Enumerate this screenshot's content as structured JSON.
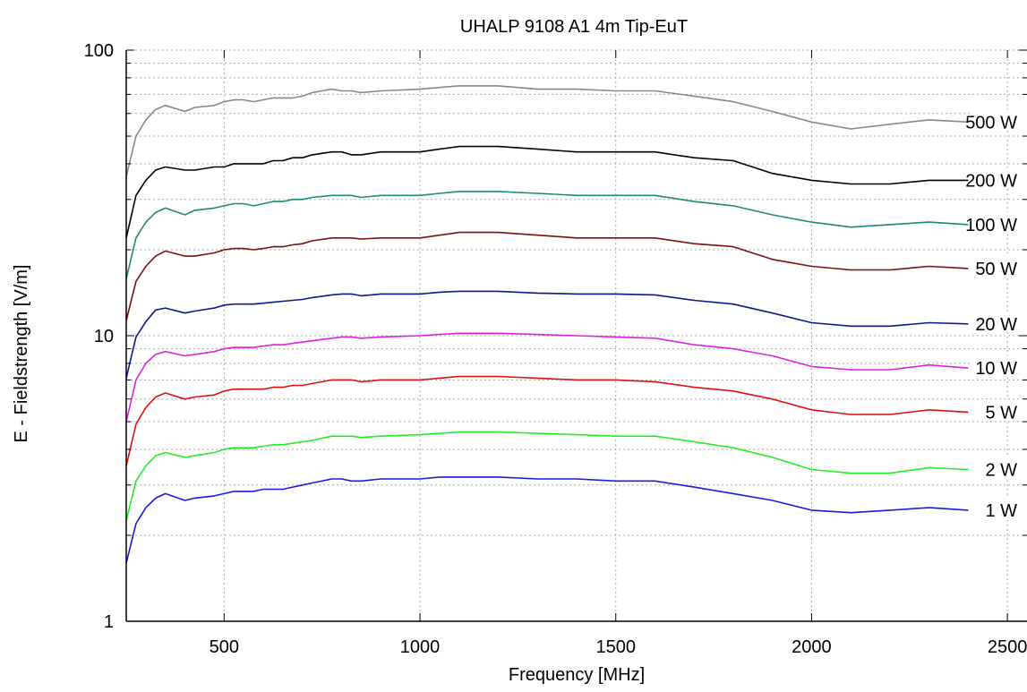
{
  "chart_data": {
    "type": "line",
    "title": "UHALP 9108 A1  4m Tip-EuT",
    "xlabel": "Frequency [MHz]",
    "ylabel": "E - Fieldstrength [V/m]",
    "xlim": [
      250,
      2550
    ],
    "ylim": [
      1,
      100
    ],
    "yscale": "log",
    "grid": true,
    "x_ticks": [
      500,
      1000,
      1500,
      2000,
      2500
    ],
    "y_ticks": [
      1,
      10,
      100
    ],
    "x_tick_labels": [
      "500",
      "1000",
      "1500",
      "2000",
      "2500"
    ],
    "y_tick_labels": [
      "1",
      "10",
      "100"
    ],
    "x": [
      250,
      275,
      300,
      325,
      350,
      400,
      425,
      475,
      500,
      525,
      550,
      575,
      600,
      625,
      650,
      675,
      700,
      725,
      775,
      800,
      825,
      850,
      900,
      1000,
      1050,
      1100,
      1200,
      1300,
      1400,
      1500,
      1600,
      1700,
      1800,
      1900,
      2000,
      2100,
      2200,
      2300,
      2400
    ],
    "series": [
      {
        "name": "500 W",
        "color": "#888888",
        "values": [
          36,
          50,
          57,
          62,
          64,
          61,
          63,
          64,
          66,
          67,
          67,
          66,
          67,
          68,
          68,
          68,
          69,
          71,
          73,
          72,
          72,
          71,
          72,
          73,
          74,
          75,
          75,
          73,
          73,
          72,
          72,
          69,
          66,
          61,
          56,
          53,
          55,
          57,
          56
        ]
      },
      {
        "name": "200 W",
        "color": "#000000",
        "values": [
          22,
          31,
          35,
          38,
          39,
          38,
          38,
          39,
          39,
          40,
          40,
          40,
          40,
          41,
          41,
          42,
          42,
          43,
          44,
          44,
          43,
          43,
          44,
          44,
          45,
          46,
          46,
          45,
          44,
          44,
          44,
          42,
          41,
          37,
          35,
          34,
          34,
          35,
          35
        ]
      },
      {
        "name": "100 W",
        "color": "#1b8a7a",
        "values": [
          15.8,
          22,
          25,
          27,
          28,
          26.5,
          27.5,
          28,
          28.5,
          29,
          29,
          28.5,
          29,
          29.5,
          29.5,
          30,
          30,
          30.5,
          31,
          31,
          31,
          30.5,
          31,
          31,
          31.5,
          32,
          32,
          31.5,
          31,
          31,
          31,
          29.5,
          28.5,
          26.5,
          25,
          24,
          24.5,
          25,
          24.5
        ]
      },
      {
        "name": "50 W",
        "color": "#7a1010",
        "values": [
          11.3,
          15.5,
          17.5,
          19,
          19.8,
          19,
          19,
          19.5,
          20,
          20.2,
          20.2,
          20,
          20.2,
          20.5,
          20.5,
          20.8,
          21,
          21.5,
          22,
          22,
          22,
          21.8,
          22,
          22,
          22.5,
          23,
          23,
          22.5,
          22,
          22,
          22,
          21,
          20.5,
          18.5,
          17.5,
          17,
          17,
          17.5,
          17.2
        ]
      },
      {
        "name": "20 W",
        "color": "#0a1a8a",
        "values": [
          7.1,
          9.9,
          11.2,
          12.3,
          12.5,
          12,
          12.2,
          12.5,
          12.8,
          12.9,
          12.9,
          12.9,
          13,
          13.1,
          13.2,
          13.3,
          13.4,
          13.6,
          13.9,
          14,
          14,
          13.8,
          14,
          14,
          14.2,
          14.3,
          14.3,
          14.1,
          14,
          14,
          13.9,
          13.3,
          12.9,
          12,
          11.1,
          10.8,
          10.8,
          11.1,
          11
        ]
      },
      {
        "name": "10 W",
        "color": "#e020e0",
        "values": [
          5,
          7,
          8,
          8.6,
          8.8,
          8.5,
          8.6,
          8.8,
          9,
          9.1,
          9.1,
          9.1,
          9.2,
          9.3,
          9.3,
          9.4,
          9.5,
          9.6,
          9.8,
          9.9,
          9.9,
          9.8,
          9.9,
          10,
          10.1,
          10.2,
          10.2,
          10.1,
          10,
          9.9,
          9.8,
          9.3,
          9,
          8.5,
          7.8,
          7.6,
          7.6,
          7.9,
          7.7
        ]
      },
      {
        "name": "5 W",
        "color": "#e01010",
        "values": [
          3.5,
          4.9,
          5.6,
          6.1,
          6.3,
          6.0,
          6.1,
          6.2,
          6.4,
          6.5,
          6.5,
          6.5,
          6.5,
          6.6,
          6.6,
          6.7,
          6.7,
          6.8,
          7,
          7,
          7,
          6.9,
          7,
          7,
          7.1,
          7.2,
          7.2,
          7.1,
          7,
          7,
          6.9,
          6.6,
          6.4,
          6,
          5.5,
          5.3,
          5.3,
          5.5,
          5.4
        ]
      },
      {
        "name": "2 W",
        "color": "#22ee22",
        "values": [
          2.25,
          3.1,
          3.5,
          3.8,
          3.9,
          3.75,
          3.8,
          3.9,
          4,
          4.05,
          4.05,
          4.05,
          4.1,
          4.15,
          4.15,
          4.2,
          4.25,
          4.3,
          4.45,
          4.45,
          4.45,
          4.4,
          4.45,
          4.5,
          4.55,
          4.6,
          4.6,
          4.55,
          4.5,
          4.45,
          4.45,
          4.25,
          4.05,
          3.75,
          3.4,
          3.3,
          3.3,
          3.45,
          3.4
        ]
      },
      {
        "name": "1 W",
        "color": "#1a1ae0",
        "values": [
          1.6,
          2.2,
          2.5,
          2.7,
          2.8,
          2.65,
          2.7,
          2.75,
          2.8,
          2.85,
          2.85,
          2.85,
          2.9,
          2.9,
          2.9,
          2.95,
          3,
          3.05,
          3.15,
          3.15,
          3.1,
          3.1,
          3.15,
          3.15,
          3.2,
          3.2,
          3.2,
          3.15,
          3.15,
          3.1,
          3.1,
          2.95,
          2.8,
          2.65,
          2.45,
          2.4,
          2.45,
          2.5,
          2.45
        ]
      }
    ]
  }
}
